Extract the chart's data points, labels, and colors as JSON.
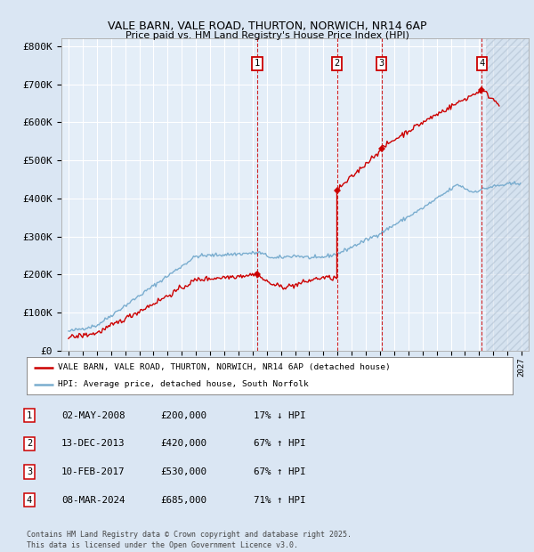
{
  "title1": "VALE BARN, VALE ROAD, THURTON, NORWICH, NR14 6AP",
  "title2": "Price paid vs. HM Land Registry's House Price Index (HPI)",
  "ylim": [
    0,
    820000
  ],
  "yticks": [
    0,
    100000,
    200000,
    300000,
    400000,
    500000,
    600000,
    700000,
    800000
  ],
  "ytick_labels": [
    "£0",
    "£100K",
    "£200K",
    "£300K",
    "£400K",
    "£500K",
    "£600K",
    "£700K",
    "£800K"
  ],
  "xmin": 1994.5,
  "xmax": 2027.5,
  "bg_color": "#dae6f3",
  "plot_bg": "#e4eef8",
  "grid_color": "#ffffff",
  "red_color": "#cc0000",
  "blue_color": "#7aadcf",
  "legend_label_red": "VALE BARN, VALE ROAD, THURTON, NORWICH, NR14 6AP (detached house)",
  "legend_label_blue": "HPI: Average price, detached house, South Norfolk",
  "sale_dates": [
    2008.336,
    2013.956,
    2017.11,
    2024.186
  ],
  "sale_prices": [
    200000,
    420000,
    530000,
    685000
  ],
  "sale_labels": [
    "1",
    "2",
    "3",
    "4"
  ],
  "vline_color": "#cc0000",
  "table_entries": [
    {
      "num": "1",
      "date": "02-MAY-2008",
      "price": "£200,000",
      "change": "17% ↓ HPI"
    },
    {
      "num": "2",
      "date": "13-DEC-2013",
      "price": "£420,000",
      "change": "67% ↑ HPI"
    },
    {
      "num": "3",
      "date": "10-FEB-2017",
      "price": "£530,000",
      "change": "67% ↑ HPI"
    },
    {
      "num": "4",
      "date": "08-MAR-2024",
      "price": "£685,000",
      "change": "71% ↑ HPI"
    }
  ],
  "footer": "Contains HM Land Registry data © Crown copyright and database right 2025.\nThis data is licensed under the Open Government Licence v3.0."
}
